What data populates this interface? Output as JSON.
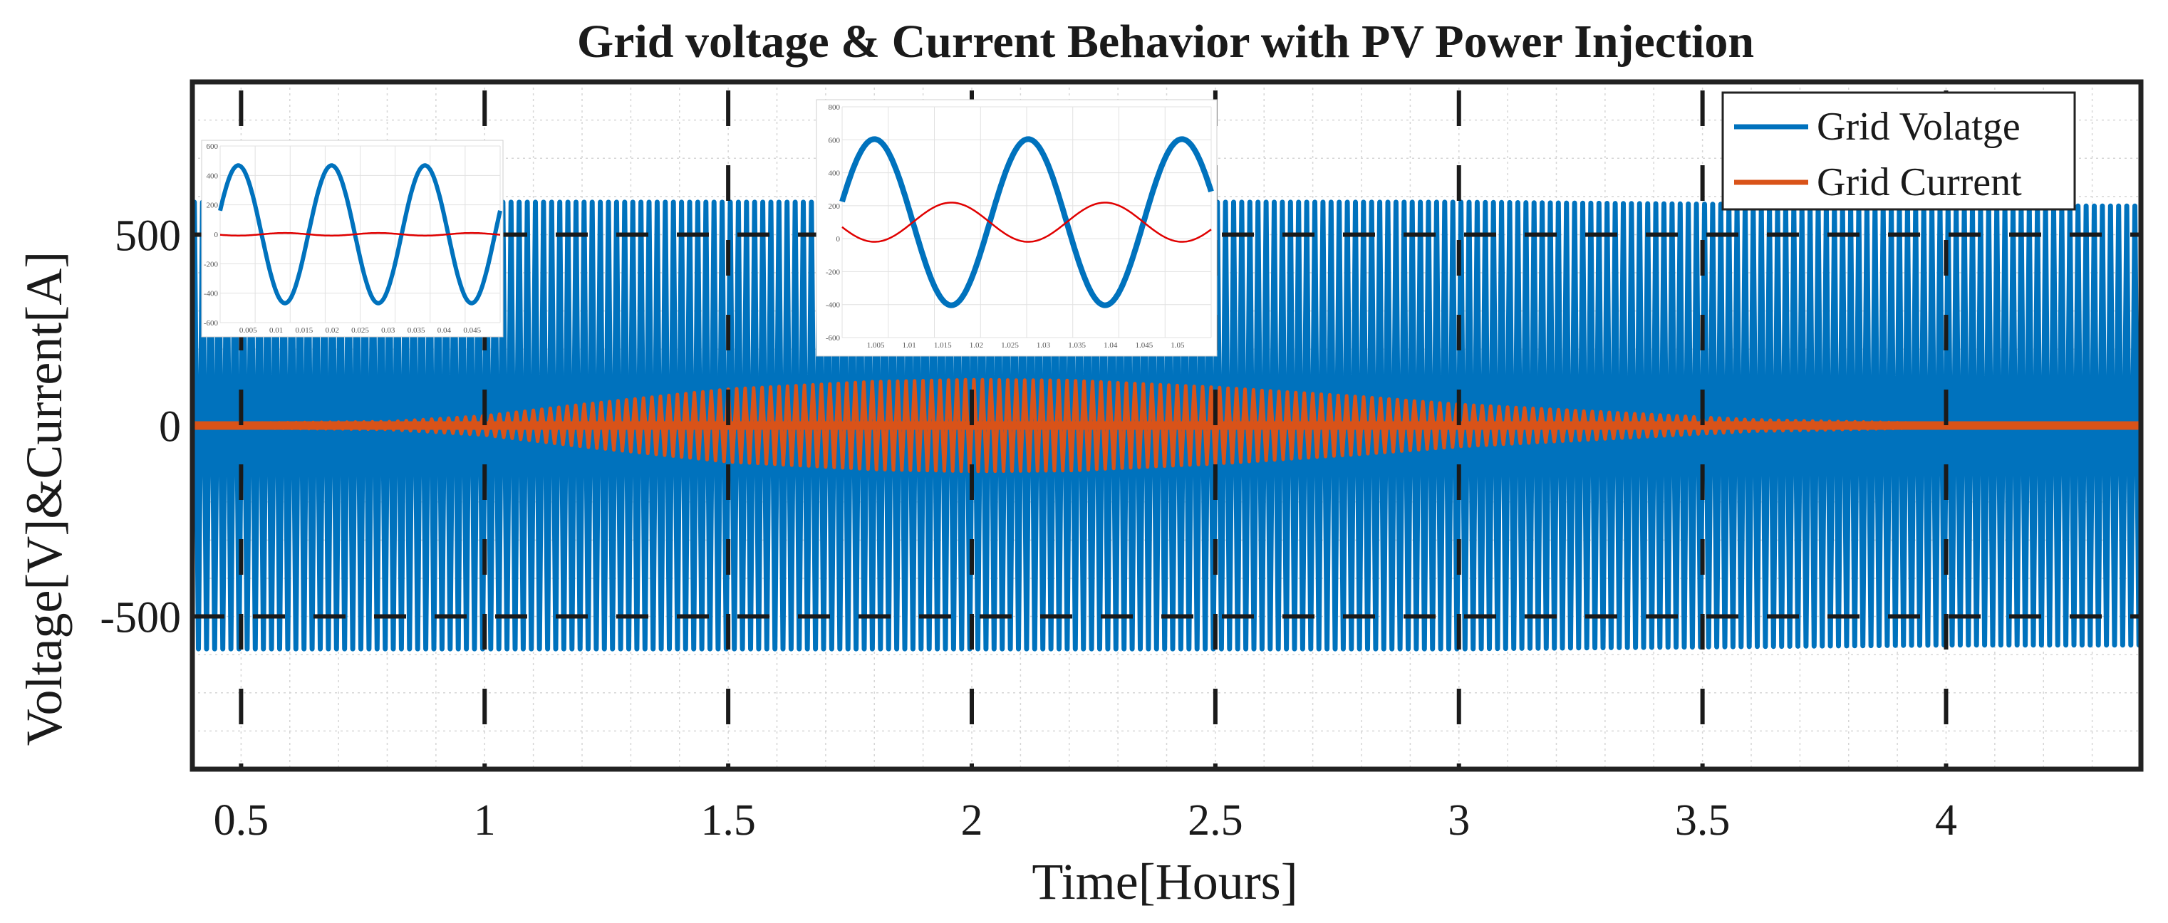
{
  "chart_data": {
    "type": "line",
    "title": "Grid voltage & Current Behavior with PV Power Injection",
    "xlabel": "Time[Hours]",
    "ylabel": "Voltage[V]&Current[A]",
    "xlim": [
      0.4,
      4.4
    ],
    "ylim": [
      -900,
      900
    ],
    "xticks": [
      0.5,
      1,
      1.5,
      2,
      2.5,
      3,
      3.5,
      4
    ],
    "xtick_labels": [
      "0.5",
      "1",
      "1.5",
      "2",
      "2.5",
      "3",
      "3.5",
      "4"
    ],
    "yticks": [
      500,
      0,
      -500
    ],
    "ytick_labels": [
      "500",
      "0",
      "-500"
    ],
    "grid": true,
    "legend_position": "top-right",
    "series": [
      {
        "name": "Grid Volatge",
        "color": "#0072BD",
        "kind": "oscillating envelope",
        "envelope_x": [
          0.4,
          0.5,
          1.0,
          1.5,
          2.0,
          2.5,
          3.0,
          3.5,
          4.0,
          4.4
        ],
        "envelope_amplitude": [
          585,
          585,
          585,
          585,
          585,
          585,
          585,
          580,
          575,
          575
        ]
      },
      {
        "name": "Grid Current",
        "color": "#D95319",
        "kind": "oscillating envelope",
        "envelope_x": [
          0.4,
          0.8,
          1.0,
          1.2,
          1.5,
          1.8,
          2.0,
          2.2,
          2.5,
          2.8,
          3.0,
          3.3,
          3.6,
          4.0,
          4.4
        ],
        "envelope_amplitude": [
          5,
          10,
          25,
          55,
          95,
          115,
          120,
          118,
          100,
          75,
          55,
          35,
          15,
          5,
          5
        ]
      }
    ],
    "insets": [
      {
        "name": "inset-left",
        "y_tick_labels": [
          "600",
          "400",
          "200",
          "0",
          "-200",
          "-400",
          "-600"
        ],
        "x_tick_labels": [
          "0.005",
          "0.01",
          "0.015",
          "0.02",
          "0.025",
          "0.03",
          "0.035",
          "0.04",
          "0.045"
        ]
      },
      {
        "name": "inset-center",
        "y_tick_labels": [
          "800",
          "600",
          "400",
          "200",
          "0",
          "-200",
          "-400",
          "-600"
        ],
        "x_tick_labels": [
          "1.005",
          "1.01",
          "1.015",
          "1.02",
          "1.025",
          "1.03",
          "1.035",
          "1.04",
          "1.045",
          "1.05"
        ]
      }
    ]
  }
}
